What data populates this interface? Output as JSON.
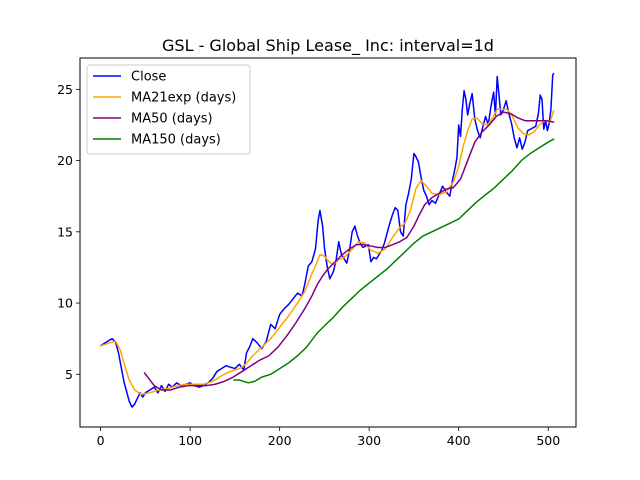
{
  "chart_data": {
    "type": "line",
    "title": "GSL - Global Ship Lease_ Inc: interval=1d",
    "xlabel": "",
    "ylabel": "",
    "xlim": [
      -23,
      531
    ],
    "ylim": [
      1.3,
      27.2
    ],
    "xticks": [
      0,
      100,
      200,
      300,
      400,
      500
    ],
    "yticks": [
      5,
      10,
      15,
      20,
      25
    ],
    "grid": false,
    "legend_position": "top-left",
    "series": [
      {
        "name": "Close",
        "color": "#0000ff",
        "points": [
          [
            0,
            7.0
          ],
          [
            5,
            7.2
          ],
          [
            10,
            7.4
          ],
          [
            13,
            7.5
          ],
          [
            17,
            7.2
          ],
          [
            20,
            6.5
          ],
          [
            23,
            5.5
          ],
          [
            26,
            4.5
          ],
          [
            29,
            3.8
          ],
          [
            32,
            3.1
          ],
          [
            35,
            2.7
          ],
          [
            38,
            2.9
          ],
          [
            41,
            3.3
          ],
          [
            44,
            3.7
          ],
          [
            47,
            3.4
          ],
          [
            50,
            3.7
          ],
          [
            55,
            3.9
          ],
          [
            60,
            4.1
          ],
          [
            64,
            3.7
          ],
          [
            68,
            4.2
          ],
          [
            72,
            3.8
          ],
          [
            76,
            4.3
          ],
          [
            80,
            4.1
          ],
          [
            85,
            4.4
          ],
          [
            90,
            4.2
          ],
          [
            95,
            4.3
          ],
          [
            100,
            4.4
          ],
          [
            105,
            4.2
          ],
          [
            110,
            4.1
          ],
          [
            115,
            4.2
          ],
          [
            120,
            4.4
          ],
          [
            125,
            4.7
          ],
          [
            130,
            5.2
          ],
          [
            135,
            5.4
          ],
          [
            140,
            5.6
          ],
          [
            145,
            5.5
          ],
          [
            150,
            5.4
          ],
          [
            155,
            5.7
          ],
          [
            160,
            5.3
          ],
          [
            163,
            6.5
          ],
          [
            167,
            7.0
          ],
          [
            170,
            7.5
          ],
          [
            175,
            7.2
          ],
          [
            180,
            6.8
          ],
          [
            185,
            7.3
          ],
          [
            190,
            8.5
          ],
          [
            195,
            8.2
          ],
          [
            200,
            9.2
          ],
          [
            205,
            9.6
          ],
          [
            210,
            9.9
          ],
          [
            215,
            10.3
          ],
          [
            220,
            10.7
          ],
          [
            225,
            10.5
          ],
          [
            228,
            11.3
          ],
          [
            232,
            12.6
          ],
          [
            236,
            12.9
          ],
          [
            240,
            13.8
          ],
          [
            243,
            15.8
          ],
          [
            245,
            16.5
          ],
          [
            248,
            15.4
          ],
          [
            250,
            13.9
          ],
          [
            253,
            12.6
          ],
          [
            256,
            11.7
          ],
          [
            260,
            12.2
          ],
          [
            263,
            13.0
          ],
          [
            266,
            14.3
          ],
          [
            269,
            13.4
          ],
          [
            272,
            13.1
          ],
          [
            275,
            12.8
          ],
          [
            278,
            13.7
          ],
          [
            281,
            15.0
          ],
          [
            284,
            15.4
          ],
          [
            287,
            14.7
          ],
          [
            290,
            14.2
          ],
          [
            293,
            13.9
          ],
          [
            296,
            14.0
          ],
          [
            299,
            14.1
          ],
          [
            302,
            12.9
          ],
          [
            305,
            13.2
          ],
          [
            308,
            13.1
          ],
          [
            311,
            13.4
          ],
          [
            314,
            13.7
          ],
          [
            317,
            14.2
          ],
          [
            320,
            14.9
          ],
          [
            323,
            15.6
          ],
          [
            326,
            16.2
          ],
          [
            329,
            16.7
          ],
          [
            332,
            16.5
          ],
          [
            335,
            15.0
          ],
          [
            338,
            14.7
          ],
          [
            341,
            16.9
          ],
          [
            344,
            17.7
          ],
          [
            347,
            18.7
          ],
          [
            350,
            20.5
          ],
          [
            352,
            20.3
          ],
          [
            355,
            19.9
          ],
          [
            358,
            18.8
          ],
          [
            361,
            17.9
          ],
          [
            364,
            17.5
          ],
          [
            367,
            16.9
          ],
          [
            370,
            17.2
          ],
          [
            374,
            17.0
          ],
          [
            378,
            17.6
          ],
          [
            382,
            18.2
          ],
          [
            386,
            17.8
          ],
          [
            390,
            17.5
          ],
          [
            393,
            18.6
          ],
          [
            396,
            19.5
          ],
          [
            398,
            20.2
          ],
          [
            400,
            22.5
          ],
          [
            402,
            21.7
          ],
          [
            404,
            23.6
          ],
          [
            406,
            24.9
          ],
          [
            408,
            24.3
          ],
          [
            410,
            23.2
          ],
          [
            412,
            23.9
          ],
          [
            415,
            24.7
          ],
          [
            418,
            22.9
          ],
          [
            421,
            22.1
          ],
          [
            424,
            21.6
          ],
          [
            427,
            22.4
          ],
          [
            430,
            23.1
          ],
          [
            433,
            22.5
          ],
          [
            436,
            23.8
          ],
          [
            439,
            24.8
          ],
          [
            441,
            23.2
          ],
          [
            443,
            25.9
          ],
          [
            445,
            24.6
          ],
          [
            447,
            23.2
          ],
          [
            450,
            23.6
          ],
          [
            453,
            24.2
          ],
          [
            456,
            23.3
          ],
          [
            459,
            22.6
          ],
          [
            462,
            21.6
          ],
          [
            465,
            20.9
          ],
          [
            468,
            21.6
          ],
          [
            471,
            20.8
          ],
          [
            474,
            21.3
          ],
          [
            477,
            22.1
          ],
          [
            480,
            22.2
          ],
          [
            483,
            22.3
          ],
          [
            486,
            22.4
          ],
          [
            489,
            23.3
          ],
          [
            491,
            24.6
          ],
          [
            493,
            24.3
          ],
          [
            495,
            22.2
          ],
          [
            497,
            22.8
          ],
          [
            499,
            22.1
          ],
          [
            501,
            22.6
          ],
          [
            503,
            23.6
          ],
          [
            505,
            26.0
          ],
          [
            506,
            26.1
          ]
        ]
      },
      {
        "name": "MA21exp (days)",
        "color": "#ffa500",
        "points": [
          [
            0,
            7.0
          ],
          [
            10,
            7.2
          ],
          [
            17,
            7.3
          ],
          [
            22,
            6.7
          ],
          [
            27,
            5.6
          ],
          [
            32,
            4.6
          ],
          [
            38,
            3.9
          ],
          [
            45,
            3.6
          ],
          [
            55,
            3.7
          ],
          [
            65,
            3.9
          ],
          [
            75,
            4.0
          ],
          [
            85,
            4.2
          ],
          [
            95,
            4.3
          ],
          [
            105,
            4.3
          ],
          [
            115,
            4.3
          ],
          [
            125,
            4.5
          ],
          [
            135,
            4.9
          ],
          [
            145,
            5.2
          ],
          [
            155,
            5.4
          ],
          [
            162,
            5.7
          ],
          [
            170,
            6.3
          ],
          [
            180,
            6.9
          ],
          [
            190,
            7.5
          ],
          [
            200,
            8.3
          ],
          [
            210,
            9.1
          ],
          [
            220,
            10.0
          ],
          [
            228,
            10.8
          ],
          [
            235,
            11.9
          ],
          [
            240,
            12.6
          ],
          [
            245,
            13.4
          ],
          [
            250,
            13.3
          ],
          [
            255,
            12.9
          ],
          [
            260,
            12.7
          ],
          [
            265,
            13.0
          ],
          [
            272,
            13.2
          ],
          [
            280,
            13.7
          ],
          [
            288,
            14.3
          ],
          [
            295,
            14.2
          ],
          [
            302,
            13.7
          ],
          [
            310,
            13.5
          ],
          [
            318,
            13.8
          ],
          [
            326,
            14.6
          ],
          [
            334,
            15.3
          ],
          [
            340,
            15.6
          ],
          [
            346,
            16.5
          ],
          [
            352,
            18.0
          ],
          [
            358,
            18.6
          ],
          [
            364,
            18.2
          ],
          [
            370,
            17.7
          ],
          [
            378,
            17.6
          ],
          [
            386,
            17.8
          ],
          [
            394,
            18.5
          ],
          [
            400,
            19.6
          ],
          [
            405,
            21.0
          ],
          [
            410,
            22.1
          ],
          [
            415,
            22.9
          ],
          [
            420,
            23.0
          ],
          [
            426,
            22.6
          ],
          [
            432,
            22.5
          ],
          [
            438,
            23.0
          ],
          [
            443,
            23.6
          ],
          [
            448,
            23.6
          ],
          [
            454,
            23.6
          ],
          [
            460,
            23.1
          ],
          [
            466,
            22.3
          ],
          [
            472,
            21.9
          ],
          [
            478,
            21.8
          ],
          [
            484,
            22.0
          ],
          [
            490,
            22.5
          ],
          [
            496,
            22.8
          ],
          [
            502,
            22.7
          ],
          [
            506,
            23.5
          ]
        ]
      },
      {
        "name": "MA50 (days)",
        "color": "#800080",
        "points": [
          [
            49,
            5.1
          ],
          [
            55,
            4.6
          ],
          [
            60,
            4.2
          ],
          [
            68,
            3.9
          ],
          [
            78,
            3.9
          ],
          [
            88,
            4.1
          ],
          [
            98,
            4.2
          ],
          [
            108,
            4.2
          ],
          [
            118,
            4.2
          ],
          [
            128,
            4.3
          ],
          [
            138,
            4.5
          ],
          [
            148,
            4.8
          ],
          [
            158,
            5.2
          ],
          [
            168,
            5.6
          ],
          [
            178,
            6.0
          ],
          [
            188,
            6.3
          ],
          [
            198,
            6.9
          ],
          [
            208,
            7.7
          ],
          [
            218,
            8.6
          ],
          [
            228,
            9.6
          ],
          [
            236,
            10.5
          ],
          [
            242,
            11.3
          ],
          [
            248,
            11.9
          ],
          [
            254,
            12.4
          ],
          [
            262,
            12.9
          ],
          [
            270,
            13.4
          ],
          [
            278,
            13.8
          ],
          [
            286,
            14.1
          ],
          [
            294,
            14.1
          ],
          [
            302,
            14.0
          ],
          [
            310,
            13.9
          ],
          [
            318,
            13.9
          ],
          [
            326,
            14.1
          ],
          [
            334,
            14.3
          ],
          [
            342,
            14.6
          ],
          [
            350,
            15.4
          ],
          [
            356,
            16.2
          ],
          [
            362,
            16.9
          ],
          [
            370,
            17.4
          ],
          [
            378,
            17.7
          ],
          [
            386,
            18.0
          ],
          [
            394,
            18.1
          ],
          [
            402,
            18.7
          ],
          [
            410,
            20.0
          ],
          [
            418,
            21.3
          ],
          [
            426,
            22.0
          ],
          [
            434,
            22.5
          ],
          [
            442,
            23.1
          ],
          [
            450,
            23.4
          ],
          [
            458,
            23.3
          ],
          [
            466,
            23.0
          ],
          [
            474,
            22.8
          ],
          [
            482,
            22.8
          ],
          [
            490,
            22.8
          ],
          [
            498,
            22.8
          ],
          [
            506,
            22.7
          ]
        ]
      },
      {
        "name": "MA150 (days)",
        "color": "#008000",
        "points": [
          [
            149,
            4.6
          ],
          [
            155,
            4.6
          ],
          [
            160,
            4.5
          ],
          [
            165,
            4.4
          ],
          [
            172,
            4.5
          ],
          [
            180,
            4.8
          ],
          [
            190,
            5.0
          ],
          [
            200,
            5.4
          ],
          [
            210,
            5.8
          ],
          [
            220,
            6.3
          ],
          [
            230,
            6.9
          ],
          [
            236,
            7.4
          ],
          [
            242,
            7.9
          ],
          [
            250,
            8.4
          ],
          [
            260,
            9.0
          ],
          [
            270,
            9.7
          ],
          [
            280,
            10.3
          ],
          [
            290,
            10.9
          ],
          [
            300,
            11.4
          ],
          [
            310,
            11.9
          ],
          [
            320,
            12.4
          ],
          [
            330,
            13.0
          ],
          [
            340,
            13.6
          ],
          [
            350,
            14.2
          ],
          [
            360,
            14.7
          ],
          [
            370,
            15.0
          ],
          [
            380,
            15.3
          ],
          [
            390,
            15.6
          ],
          [
            400,
            15.9
          ],
          [
            410,
            16.5
          ],
          [
            420,
            17.1
          ],
          [
            430,
            17.6
          ],
          [
            440,
            18.1
          ],
          [
            450,
            18.7
          ],
          [
            460,
            19.3
          ],
          [
            470,
            20.0
          ],
          [
            480,
            20.5
          ],
          [
            490,
            20.9
          ],
          [
            500,
            21.3
          ],
          [
            506,
            21.5
          ]
        ]
      }
    ]
  }
}
